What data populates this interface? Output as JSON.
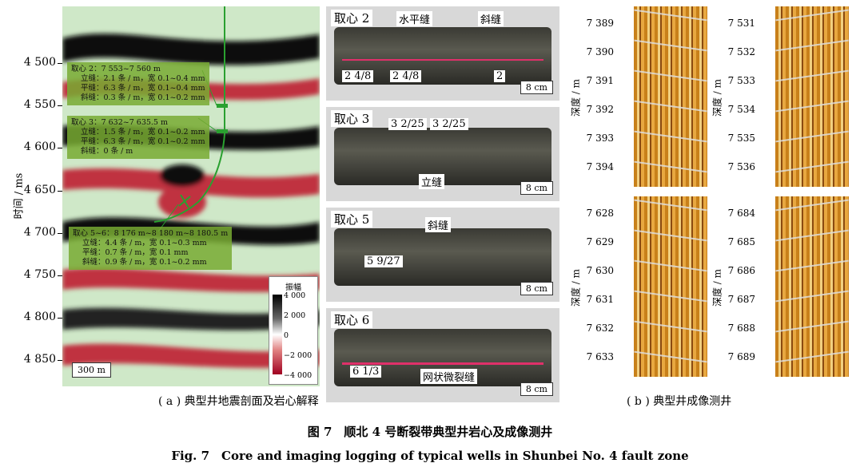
{
  "seismic": {
    "ylabel": "时间 / ms",
    "yticks": [
      "4 500",
      "4 550",
      "4 600",
      "4 650",
      "4 700",
      "4 750",
      "4 800",
      "4 850"
    ],
    "annotations": [
      {
        "title": "取心 2：7 553~7 560 m",
        "lines": [
          "立缝：2.1 条 / m，宽 0.1~0.4 mm",
          "平缝：6.3 条 / m，宽 0.1~0.4 mm",
          "斜缝：0.3 条 / m，宽 0.1~0.2 mm"
        ]
      },
      {
        "title": "取心 3：7 632~7 635.5 m",
        "lines": [
          "立缝：1.5 条 / m，宽 0.1~0.2 mm",
          "平缝：6.3 条 / m，宽 0.1~0.2 mm",
          "斜缝：0 条 / m"
        ]
      },
      {
        "title": "取心 5~6：8 176 m~8 180 m~8 180.5 m",
        "lines": [
          "立缝：4.4 条 / m，宽 0.1~0.3 mm",
          "平缝：0.7 条 / m，宽 0.1 mm",
          "斜缝：0.9 条 / m，宽 0.1~0.2 mm"
        ]
      }
    ],
    "scale": "300 m",
    "colorbar": {
      "title": "振幅",
      "ticks": [
        "4 000",
        "2 000",
        "0",
        "−2 000",
        "−4 000"
      ]
    }
  },
  "cores": [
    {
      "label": "取心 2",
      "scale": "8 cm",
      "tags": [
        "2 4/8",
        "2 4/8",
        "2"
      ],
      "notes": [
        "水平缝",
        "斜缝"
      ]
    },
    {
      "label": "取心 3",
      "scale": "8 cm",
      "tags": [
        "3 2/25",
        "3 2/25"
      ],
      "notes": [
        "立缝"
      ]
    },
    {
      "label": "取心 5",
      "scale": "8 cm",
      "tags": [
        "5 9/27"
      ],
      "notes": [
        "斜缝"
      ]
    },
    {
      "label": "取心 6",
      "scale": "8 cm",
      "tags": [
        "6 1/3"
      ],
      "notes": [
        "网状微裂缝"
      ]
    }
  ],
  "logs": {
    "ylabel": "深度 / m",
    "panels": [
      {
        "ticks": [
          "7 389",
          "7 390",
          "7 391",
          "7 392",
          "7 393",
          "7 394"
        ]
      },
      {
        "ticks": [
          "7 531",
          "7 532",
          "7 533",
          "7 534",
          "7 535",
          "7 536"
        ]
      },
      {
        "ticks": [
          "7 628",
          "7 629",
          "7 630",
          "7 631",
          "7 632",
          "7 633"
        ]
      },
      {
        "ticks": [
          "7 684",
          "7 685",
          "7 686",
          "7 687",
          "7 688",
          "7 689"
        ]
      }
    ]
  },
  "captions": {
    "a": "( a ) 典型井地震剖面及岩心解释",
    "b": "( b ) 典型井成像测井",
    "fig_cn": "图 7　顺北 4 号断裂带典型井岩心及成像测井",
    "fig_en": "Fig. 7　Core and imaging logging of typical wells in Shunbei No. 4 fault zone"
  }
}
